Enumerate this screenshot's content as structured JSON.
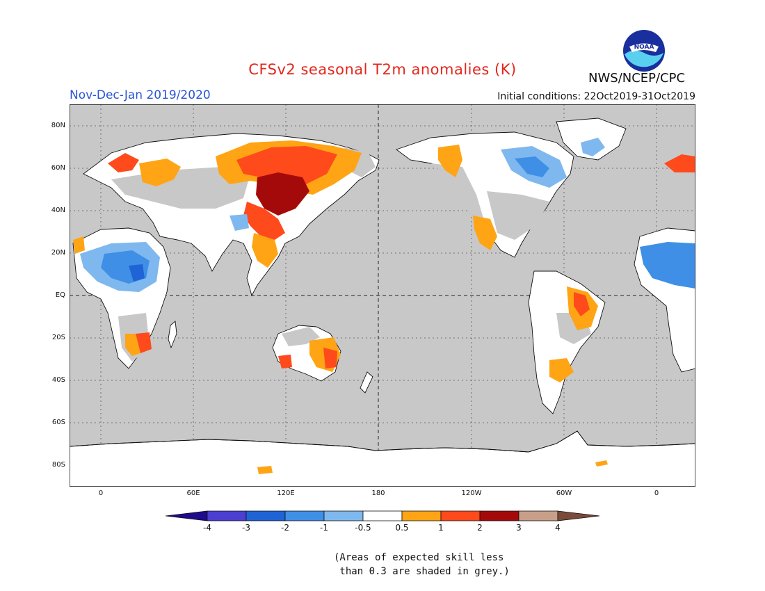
{
  "title": "CFSv2 seasonal T2m anomalies (K)",
  "season": "Nov-Dec-Jan 2019/2020",
  "initial_conditions": "Initial conditions: 22Oct2019-31Oct2019",
  "agency": "NWS/NCEP/CPC",
  "logo_text": "NOAA",
  "lat_labels": [
    "80N",
    "60N",
    "40N",
    "20N",
    "EQ",
    "20S",
    "40S",
    "60S",
    "80S"
  ],
  "lon_labels": [
    "0",
    "60E",
    "120E",
    "180",
    "120W",
    "60W",
    "0"
  ],
  "colorbar": {
    "labels": [
      "-4",
      "-3",
      "-2",
      "-1",
      "-0.5",
      "0.5",
      "1",
      "2",
      "3",
      "4"
    ],
    "colors": [
      "#1e0c8c",
      "#4a3fd1",
      "#1f63d6",
      "#3f8fe6",
      "#7fb8ef",
      "#ffffff",
      "#ffa414",
      "#ff4a1c",
      "#a50a0a",
      "#c8a08a",
      "#7a4a3a"
    ]
  },
  "note": "(Areas of expected skill less\n than 0.3 are shaded in grey.)",
  "colors": {
    "ocean_grey": "#c8c8c8",
    "title_red": "#e3261c",
    "season_blue": "#2a55d6"
  }
}
